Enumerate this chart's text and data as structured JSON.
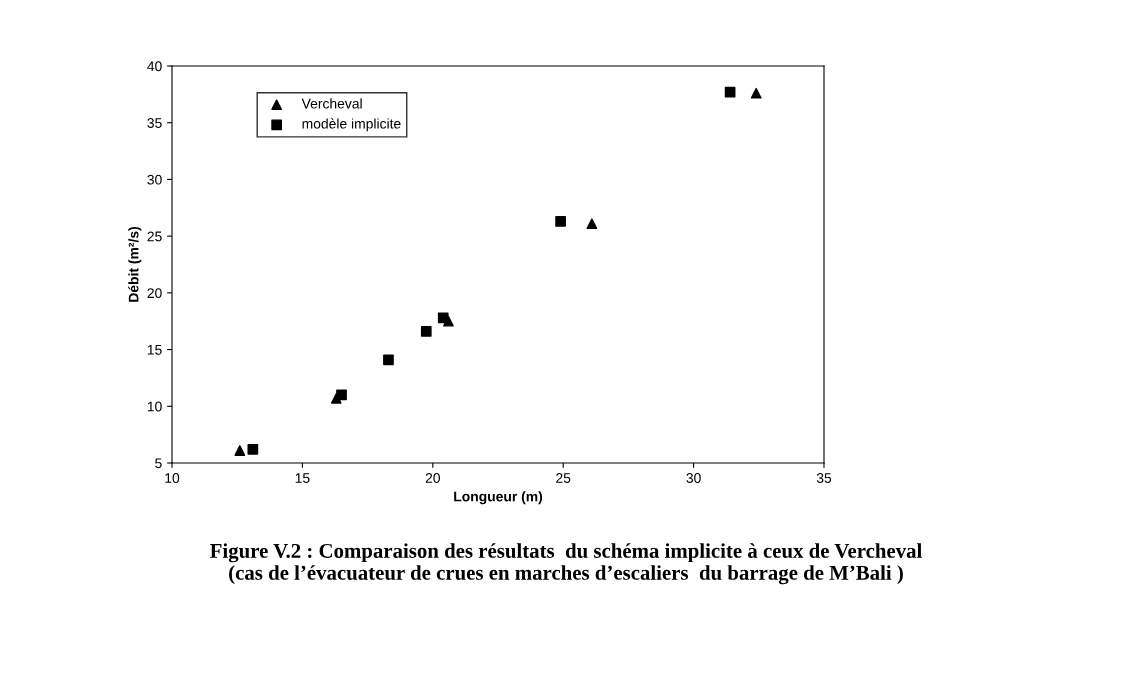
{
  "chart_data": {
    "type": "scatter",
    "xlabel": "Longueur (m)",
    "ylabel": "Débit (m²/s)",
    "xlim": [
      10,
      35
    ],
    "xticks": [
      10,
      15,
      20,
      25,
      30,
      35
    ],
    "ylim": [
      5,
      40
    ],
    "yticks": [
      5,
      10,
      15,
      20,
      25,
      30,
      35,
      40
    ],
    "grid": false,
    "legend": "top left",
    "series": [
      {
        "name": "Vercheval",
        "color": "#000000",
        "marker": "triangle",
        "x": [
          12.6,
          16.3,
          18.3,
          19.8,
          20.6,
          26.1,
          32.4
        ],
        "values": [
          6.1,
          10.7,
          null,
          null,
          17.5,
          26.1,
          37.6
        ]
      },
      {
        "name": "modèle implicite",
        "color": "#000000",
        "marker": "square",
        "x": [
          13.1,
          16.5,
          18.3,
          19.75,
          20.4,
          24.9,
          31.4
        ],
        "values": [
          6.2,
          11.0,
          14.1,
          16.6,
          17.8,
          26.3,
          37.7
        ]
      }
    ],
    "annotations": [
      "Figure V.2 : Comparaison des résultats  du schéma implicite à ceux de Vercheval\n(cas de l’évacuateur de crues en marches d’escaliers  du barrage de M’Bali )"
    ]
  }
}
